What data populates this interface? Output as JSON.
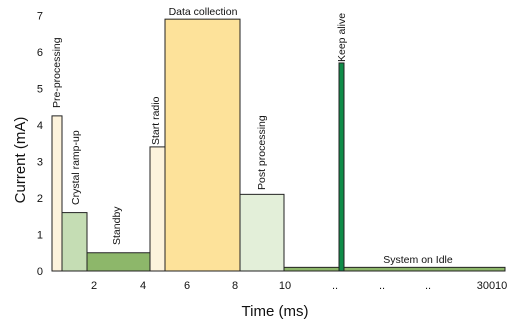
{
  "chart_data": {
    "type": "bar",
    "title": "",
    "xlabel": "Time (ms)",
    "ylabel": "Current (mA)",
    "ylim": [
      0,
      7
    ],
    "y_ticks": [
      "0",
      "1",
      "2",
      "3",
      "4",
      "5",
      "6",
      "7"
    ],
    "x_ticks": [
      "2",
      "4",
      "6",
      "8",
      "10",
      "..",
      "..",
      "..",
      "30010"
    ],
    "grid": false,
    "legend": "none",
    "phases": [
      {
        "label": "Pre-processing",
        "start_ms": 0.0,
        "end_ms": 0.5,
        "current_ma": 4.25,
        "color": "#fdf3dc",
        "label_rotated": true
      },
      {
        "label": "Crystal ramp-up",
        "start_ms": 0.5,
        "end_ms": 1.6,
        "current_ma": 1.6,
        "color": "#c5ddb4",
        "label_rotated": true
      },
      {
        "label": "Standby",
        "start_ms": 1.6,
        "end_ms": 4.3,
        "current_ma": 0.5,
        "color": "#8db76a",
        "label_rotated": true
      },
      {
        "label": "Start radio",
        "start_ms": 4.3,
        "end_ms": 5.0,
        "current_ma": 3.4,
        "color": "#fdf3dc",
        "label_rotated": true
      },
      {
        "label": "Data collection",
        "start_ms": 5.0,
        "end_ms": 8.3,
        "current_ma": 6.9,
        "color": "#fde29a",
        "label_rotated": false
      },
      {
        "label": "Post processing",
        "start_ms": 8.3,
        "end_ms": 10.2,
        "current_ma": 2.1,
        "color": "#e3efd9",
        "label_rotated": true
      },
      {
        "label": "System on Idle",
        "start_ms": 10.2,
        "end_ms": 30010,
        "current_ma": 0.1,
        "color": "#8db76a",
        "label_rotated": false
      },
      {
        "label": "Keep alive",
        "start_ms": "..",
        "end_ms": "..",
        "current_ma": 5.7,
        "color": "#0f8c48",
        "label_rotated": true
      }
    ]
  }
}
